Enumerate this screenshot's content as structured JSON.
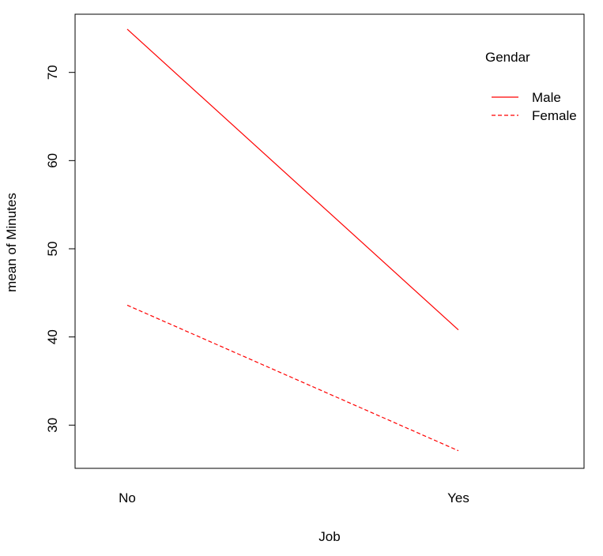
{
  "chart_data": {
    "type": "line",
    "title": "",
    "xlabel": "Job",
    "ylabel": "mean of  Minutes",
    "categories": [
      "No",
      "Yes"
    ],
    "series": [
      {
        "name": "Male",
        "values": [
          74.9,
          40.8
        ],
        "color": "#ff0000",
        "dash": "solid"
      },
      {
        "name": "Female",
        "values": [
          43.6,
          27.1
        ],
        "color": "#ff0000",
        "dash": "dashed"
      }
    ],
    "y_ticks": [
      30,
      40,
      50,
      60,
      70
    ],
    "ylim": [
      25.1,
      76.6
    ],
    "legend": {
      "title": "Gendar",
      "placement": "top-right",
      "border": false
    },
    "grid": false
  }
}
